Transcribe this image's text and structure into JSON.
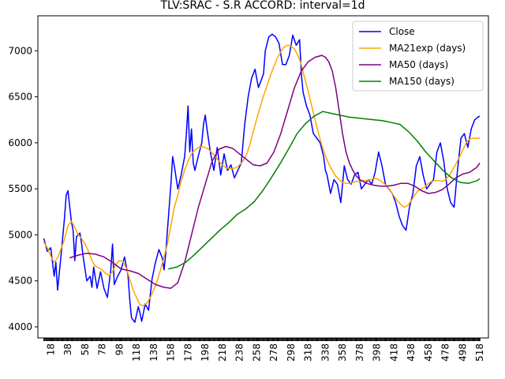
{
  "chart_data": {
    "type": "line",
    "title": "TLV:SRAC - S.R ACCORD: interval=1d",
    "xlabel": "",
    "ylabel": "",
    "xlim": [
      3,
      528
    ],
    "ylim": [
      3880,
      7380
    ],
    "x_ticks": [
      18,
      38,
      58,
      78,
      98,
      118,
      138,
      158,
      178,
      198,
      218,
      238,
      258,
      278,
      298,
      318,
      338,
      358,
      378,
      398,
      418,
      438,
      458,
      478,
      498,
      518
    ],
    "y_ticks": [
      4000,
      4500,
      5000,
      5500,
      6000,
      6500,
      7000
    ],
    "legend_position": "upper right",
    "series": [
      {
        "name": "Close",
        "color": "#0000ff",
        "x": [
          10,
          14,
          18,
          22,
          24,
          26,
          30,
          34,
          36,
          38,
          42,
          44,
          46,
          48,
          52,
          54,
          56,
          60,
          64,
          66,
          68,
          72,
          76,
          80,
          84,
          88,
          90,
          92,
          96,
          100,
          104,
          108,
          110,
          112,
          116,
          120,
          122,
          124,
          128,
          132,
          136,
          140,
          144,
          148,
          150,
          152,
          154,
          158,
          160,
          162,
          166,
          170,
          174,
          176,
          178,
          180,
          182,
          184,
          186,
          190,
          194,
          196,
          198,
          200,
          204,
          208,
          212,
          216,
          220,
          224,
          228,
          232,
          236,
          240,
          244,
          248,
          252,
          256,
          260,
          264,
          266,
          268,
          272,
          276,
          280,
          284,
          288,
          292,
          296,
          300,
          304,
          308,
          310,
          312,
          316,
          320,
          324,
          328,
          332,
          336,
          338,
          340,
          344,
          348,
          352,
          356,
          360,
          364,
          368,
          372,
          376,
          380,
          384,
          388,
          392,
          396,
          400,
          404,
          408,
          412,
          416,
          420,
          424,
          428,
          432,
          436,
          440,
          444,
          448,
          452,
          456,
          460,
          464,
          468,
          472,
          476,
          480,
          484,
          488,
          492,
          496,
          500,
          504,
          508,
          512,
          516,
          518
        ],
        "y": [
          4960,
          4820,
          4860,
          4550,
          4700,
          4400,
          4780,
          5180,
          5430,
          5480,
          5150,
          5050,
          4720,
          4980,
          5020,
          4900,
          4750,
          4500,
          4550,
          4430,
          4650,
          4420,
          4600,
          4420,
          4320,
          4620,
          4900,
          4460,
          4550,
          4620,
          4760,
          4560,
          4300,
          4100,
          4050,
          4220,
          4150,
          4060,
          4250,
          4180,
          4520,
          4700,
          4840,
          4750,
          4620,
          4800,
          5050,
          5550,
          5850,
          5750,
          5500,
          5650,
          5850,
          6100,
          6400,
          5900,
          6150,
          5780,
          5700,
          5860,
          6000,
          6200,
          6300,
          6150,
          5900,
          5700,
          5950,
          5650,
          5880,
          5700,
          5760,
          5620,
          5700,
          5780,
          6200,
          6500,
          6700,
          6800,
          6600,
          6700,
          6750,
          7000,
          7150,
          7180,
          7150,
          7080,
          6850,
          6850,
          6950,
          7170,
          7060,
          7120,
          6750,
          6550,
          6400,
          6300,
          6100,
          6050,
          6000,
          5850,
          5700,
          5650,
          5450,
          5600,
          5550,
          5350,
          5750,
          5600,
          5550,
          5650,
          5680,
          5500,
          5550,
          5600,
          5550,
          5680,
          5900,
          5750,
          5550,
          5500,
          5450,
          5350,
          5200,
          5100,
          5050,
          5300,
          5450,
          5750,
          5850,
          5650,
          5500,
          5550,
          5600,
          5900,
          6000,
          5800,
          5500,
          5350,
          5300,
          5700,
          6050,
          6100,
          5950,
          6150,
          6250,
          6280,
          6290
        ]
      },
      {
        "name": "MA21exp (days)",
        "color": "#ffa500",
        "x": [
          10,
          14,
          18,
          22,
          26,
          30,
          34,
          38,
          42,
          46,
          50,
          54,
          58,
          62,
          66,
          70,
          74,
          78,
          82,
          86,
          90,
          94,
          98,
          102,
          106,
          110,
          114,
          118,
          122,
          126,
          130,
          134,
          138,
          142,
          146,
          150,
          154,
          158,
          162,
          166,
          170,
          174,
          178,
          182,
          186,
          190,
          194,
          198,
          202,
          206,
          210,
          214,
          218,
          222,
          226,
          230,
          234,
          238,
          242,
          246,
          250,
          254,
          258,
          262,
          266,
          270,
          274,
          278,
          282,
          286,
          290,
          294,
          298,
          302,
          306,
          310,
          314,
          318,
          322,
          326,
          330,
          334,
          338,
          342,
          346,
          350,
          354,
          358,
          362,
          366,
          370,
          374,
          378,
          382,
          386,
          390,
          394,
          398,
          402,
          406,
          410,
          414,
          418,
          422,
          426,
          430,
          434,
          438,
          442,
          446,
          450,
          454,
          458,
          462,
          466,
          470,
          474,
          478,
          482,
          486,
          490,
          494,
          498,
          502,
          506,
          510,
          514,
          518
        ],
        "y": [
          4920,
          4860,
          4770,
          4700,
          4750,
          4850,
          4950,
          5100,
          5150,
          5080,
          5000,
          4960,
          4900,
          4820,
          4720,
          4660,
          4640,
          4620,
          4580,
          4560,
          4600,
          4680,
          4720,
          4710,
          4640,
          4520,
          4400,
          4320,
          4240,
          4230,
          4260,
          4320,
          4400,
          4500,
          4620,
          4760,
          4900,
          5100,
          5300,
          5430,
          5580,
          5700,
          5800,
          5880,
          5920,
          5950,
          5960,
          5950,
          5930,
          5890,
          5850,
          5800,
          5760,
          5730,
          5720,
          5720,
          5730,
          5760,
          5800,
          5870,
          5980,
          6120,
          6260,
          6390,
          6510,
          6620,
          6730,
          6830,
          6920,
          6990,
          7040,
          7060,
          7050,
          7020,
          6950,
          6850,
          6700,
          6560,
          6400,
          6250,
          6100,
          5970,
          5860,
          5770,
          5700,
          5640,
          5600,
          5570,
          5560,
          5560,
          5570,
          5580,
          5580,
          5590,
          5590,
          5600,
          5610,
          5610,
          5590,
          5560,
          5530,
          5480,
          5420,
          5370,
          5330,
          5300,
          5320,
          5370,
          5430,
          5480,
          5500,
          5520,
          5560,
          5580,
          5590,
          5590,
          5580,
          5600,
          5640,
          5700,
          5770,
          5840,
          5920,
          6000,
          6040,
          6050,
          6050,
          6050
        ]
      },
      {
        "name": "MA50 (days)",
        "color": "#800080",
        "x": [
          40,
          50,
          60,
          70,
          80,
          90,
          100,
          110,
          120,
          130,
          140,
          150,
          158,
          166,
          174,
          182,
          190,
          198,
          206,
          214,
          222,
          230,
          238,
          246,
          254,
          262,
          270,
          278,
          286,
          294,
          302,
          310,
          318,
          326,
          334,
          338,
          342,
          346,
          350,
          354,
          358,
          362,
          366,
          370,
          374,
          378,
          386,
          394,
          402,
          410,
          418,
          426,
          434,
          442,
          450,
          458,
          466,
          474,
          482,
          490,
          498,
          506,
          514,
          518
        ],
        "y": [
          4750,
          4780,
          4800,
          4790,
          4760,
          4700,
          4630,
          4610,
          4580,
          4520,
          4460,
          4430,
          4420,
          4480,
          4700,
          5000,
          5300,
          5550,
          5800,
          5930,
          5960,
          5940,
          5880,
          5820,
          5760,
          5750,
          5780,
          5900,
          6100,
          6350,
          6600,
          6780,
          6880,
          6930,
          6950,
          6930,
          6880,
          6780,
          6600,
          6350,
          6100,
          5900,
          5780,
          5700,
          5640,
          5600,
          5560,
          5540,
          5530,
          5530,
          5540,
          5560,
          5560,
          5530,
          5480,
          5450,
          5460,
          5490,
          5550,
          5620,
          5660,
          5680,
          5730,
          5780
        ]
      },
      {
        "name": "MA150 (days)",
        "color": "#008000",
        "x": [
          155,
          165,
          175,
          185,
          195,
          205,
          215,
          225,
          235,
          245,
          255,
          265,
          275,
          285,
          295,
          305,
          315,
          325,
          335,
          345,
          355,
          365,
          375,
          385,
          395,
          405,
          415,
          425,
          435,
          445,
          455,
          465,
          475,
          485,
          495,
          505,
          515,
          518
        ],
        "y": [
          4630,
          4650,
          4700,
          4780,
          4870,
          4960,
          5050,
          5130,
          5220,
          5280,
          5360,
          5480,
          5620,
          5770,
          5930,
          6100,
          6210,
          6290,
          6340,
          6320,
          6300,
          6280,
          6270,
          6260,
          6250,
          6240,
          6220,
          6200,
          6120,
          6020,
          5900,
          5800,
          5700,
          5620,
          5570,
          5560,
          5590,
          5610
        ]
      }
    ]
  }
}
